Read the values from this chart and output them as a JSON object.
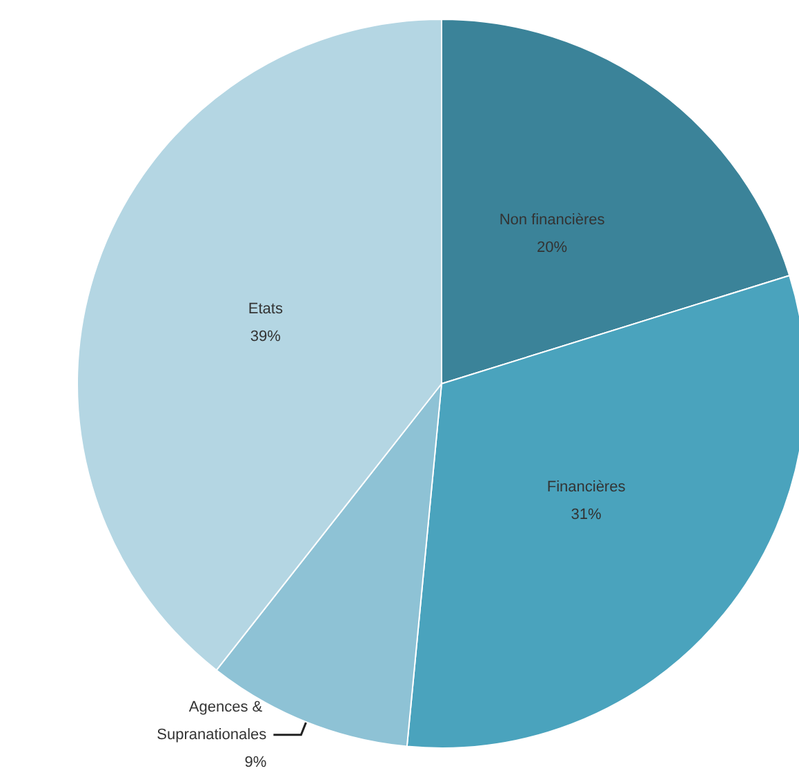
{
  "chart_data": {
    "type": "pie",
    "categories": [
      "Non financières",
      "Financières",
      "Agences & Supranationales",
      "Etats"
    ],
    "values": [
      20,
      31,
      9,
      39
    ],
    "value_labels": [
      "20%",
      "31%",
      "9%",
      "39%"
    ],
    "colors": [
      "#3b8399",
      "#4aa3bd",
      "#8ec2d5",
      "#b4d6e3"
    ]
  }
}
